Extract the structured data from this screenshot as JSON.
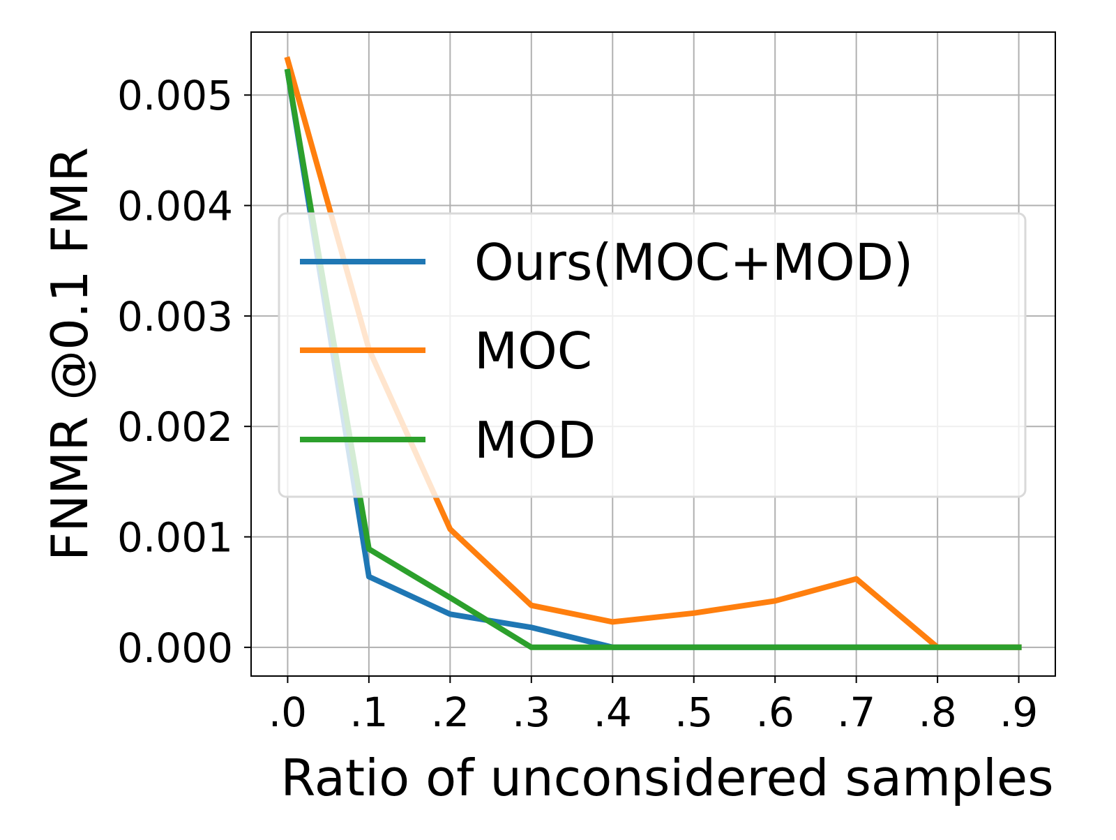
{
  "chart_data": {
    "type": "line",
    "title": "",
    "xlabel": "Ratio of unconsidered samples",
    "ylabel": "FNMR @0.1 FMR",
    "x": [
      0.0,
      0.1,
      0.2,
      0.3,
      0.4,
      0.5,
      0.6,
      0.7,
      0.8,
      0.9
    ],
    "x_tick_labels": [
      ".0",
      ".1",
      ".2",
      ".3",
      ".4",
      ".5",
      ".6",
      ".7",
      ".8",
      ".9"
    ],
    "y_ticks": [
      0.0,
      0.001,
      0.002,
      0.003,
      0.004,
      0.005
    ],
    "y_tick_labels": [
      "0.000",
      "0.001",
      "0.002",
      "0.003",
      "0.004",
      "0.005"
    ],
    "xlim": [
      -0.045,
      0.945
    ],
    "ylim": [
      -0.00026,
      0.00557
    ],
    "grid": true,
    "legend_position": "center-right",
    "series": [
      {
        "name": "Ours(MOC+MOD)",
        "color": "#1f77b4",
        "values": [
          0.00521,
          0.00064,
          0.0003,
          0.00018,
          0.0,
          0.0,
          0.0,
          0.0,
          0.0,
          0.0
        ]
      },
      {
        "name": "MOC",
        "color": "#ff7f0e",
        "values": [
          0.00532,
          0.0027,
          0.00107,
          0.00038,
          0.00023,
          0.00031,
          0.00042,
          0.00062,
          0.0,
          0.0
        ]
      },
      {
        "name": "MOD",
        "color": "#2ca02c",
        "values": [
          0.00521,
          0.00089,
          0.00045,
          0.0,
          0.0,
          0.0,
          0.0,
          0.0,
          0.0,
          0.0
        ]
      }
    ]
  }
}
